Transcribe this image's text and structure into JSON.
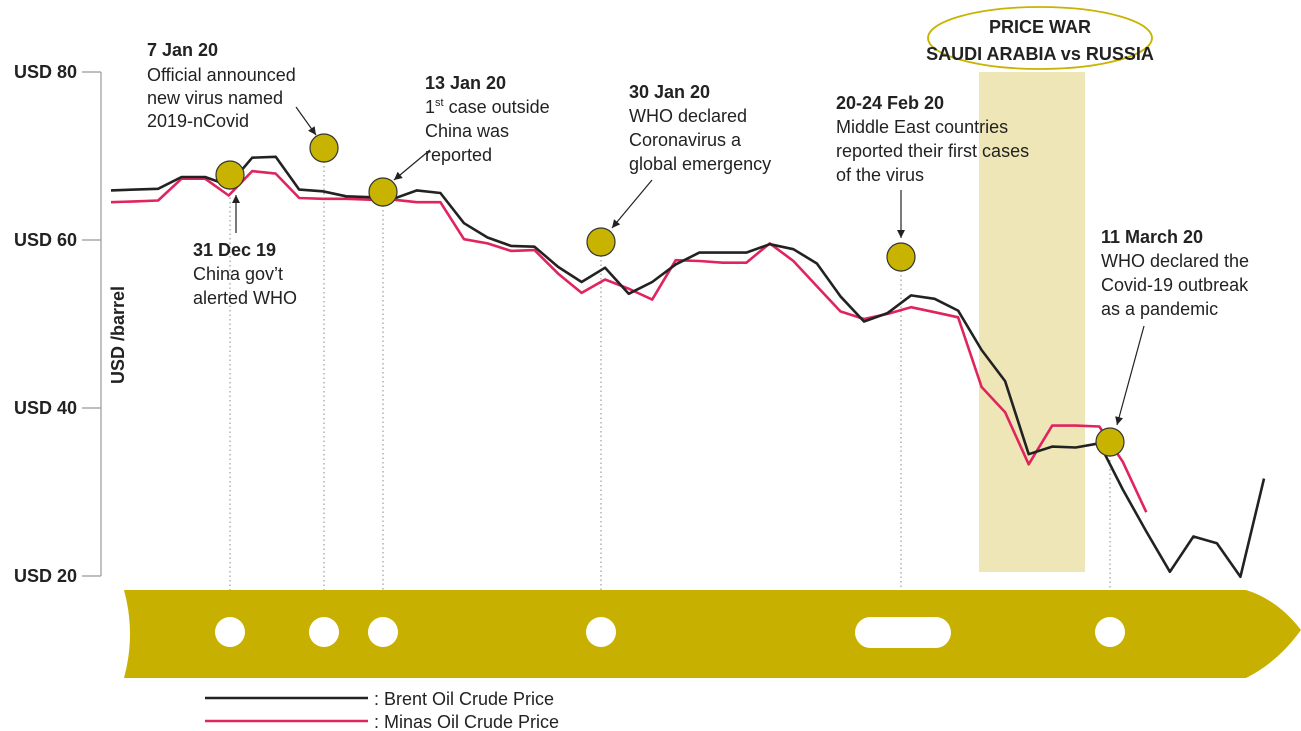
{
  "colors": {
    "brent": "#222222",
    "minas": "#e0245e",
    "marker": "#c8b400",
    "band": "#c8b000",
    "highlight": "#efe6b8"
  },
  "chart_data": {
    "type": "line",
    "ylabel": "USD /barrel",
    "ylim": [
      20,
      80
    ],
    "y_ticks": [
      {
        "value": 80,
        "label": "USD 80"
      },
      {
        "value": 60,
        "label": "USD 60"
      },
      {
        "value": 40,
        "label": "USD 40"
      },
      {
        "value": 20,
        "label": "USD 20"
      }
    ],
    "series": [
      {
        "name": "Brent Oil Crude Price",
        "key": "brent",
        "values": [
          65.9,
          66,
          66.1,
          67.5,
          67.5,
          66.5,
          69.8,
          69.9,
          66,
          65.8,
          65.2,
          65.1,
          64.9,
          65.9,
          65.6,
          62,
          60.3,
          59.3,
          59.2,
          56.8,
          55,
          56.7,
          53.6,
          55,
          57.1,
          58.5,
          58.5,
          58.5,
          59.5,
          58.9,
          57.2,
          53.3,
          50.3,
          51.3,
          53.4,
          53,
          51.6,
          46.9,
          43.2,
          34.5,
          35.4,
          35.3,
          35.8,
          30.3,
          25.3,
          20.5,
          24.7,
          23.9,
          19.9,
          31.6
        ]
      },
      {
        "name": "Minas Oil Crude Price",
        "key": "minas",
        "values": [
          64.5,
          64.6,
          64.7,
          67.3,
          67.3,
          65.3,
          68.2,
          67.9,
          65,
          64.9,
          64.9,
          64.8,
          64.8,
          64.5,
          64.5,
          60.1,
          59.6,
          58.7,
          58.8,
          56,
          53.7,
          55.3,
          54.2,
          52.9,
          57.6,
          57.5,
          57.3,
          57.3,
          59.6,
          57.5,
          54.5,
          51.5,
          50.6,
          51.2,
          52,
          51.4,
          50.8,
          42.5,
          39.5,
          33.3,
          37.9,
          37.9,
          37.8,
          33.6,
          27.6
        ]
      }
    ],
    "annotations": [
      {
        "date": "7 Jan 20",
        "lines": [
          "Official announced",
          "new virus named",
          "2019-nCovid"
        ]
      },
      {
        "date": "13 Jan 20",
        "sup_base": "1",
        "sup": "st",
        "sup_rest": " case outside",
        "lines": [
          "China was",
          "reported"
        ]
      },
      {
        "date": "30 Jan 20",
        "lines": [
          "WHO declared",
          "Coronavirus a",
          "global emergency"
        ]
      },
      {
        "date": "20-24 Feb 20",
        "lines": [
          "Middle East countries",
          "reported their first cases",
          "of the virus"
        ]
      },
      {
        "date": "11 March 20",
        "lines": [
          "WHO declared the",
          "Covid-19 outbreak",
          "as a pandemic"
        ]
      },
      {
        "date": "31 Dec 19",
        "lines": [
          "China gov’t",
          "alerted WHO"
        ]
      }
    ],
    "price_war": {
      "line1": "PRICE WAR",
      "line2": "SAUDI ARABIA vs RUSSIA"
    },
    "legend": [
      {
        "label": ": Brent Oil Crude Price",
        "key": "brent"
      },
      {
        "label": ": Minas Oil Crude Price",
        "key": "minas"
      }
    ]
  }
}
